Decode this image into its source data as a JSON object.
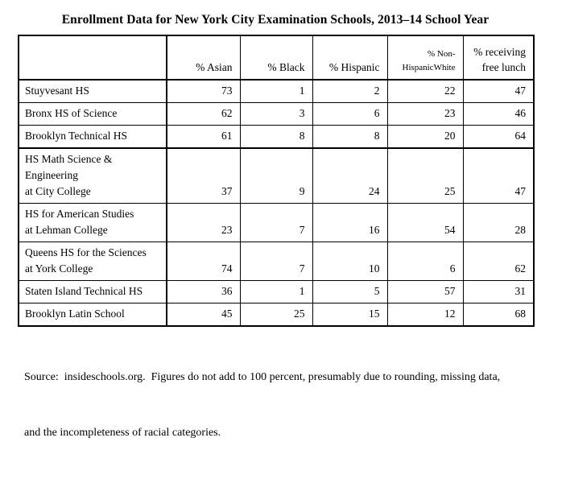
{
  "title": "Enrollment Data for New York City Examination Schools, 2013–14 School Year",
  "table": {
    "headers": [
      "",
      "% Asian",
      "% Black",
      "% Hispanic",
      "% Non-\nHispanicWhite",
      "% receiving\nfree lunch"
    ],
    "rows": [
      {
        "name": "Stuyvesant HS",
        "values": [
          "73",
          "1",
          "2",
          "22",
          "47"
        ]
      },
      {
        "name": "Bronx HS of Science",
        "values": [
          "62",
          "3",
          "6",
          "23",
          "46"
        ]
      },
      {
        "name": "Brooklyn Technical HS",
        "values": [
          "61",
          "8",
          "8",
          "20",
          "64"
        ]
      },
      {
        "name": "HS Math Science &\nEngineering\nat City College",
        "values": [
          "37",
          "9",
          "24",
          "25",
          "47"
        ]
      },
      {
        "name": "HS for American Studies\nat Lehman College",
        "values": [
          "23",
          "7",
          "16",
          "54",
          "28"
        ]
      },
      {
        "name": "Queens HS for the Sciences\nat York College",
        "values": [
          "74",
          "7",
          "10",
          "6",
          "62"
        ]
      },
      {
        "name": "Staten Island Technical HS",
        "values": [
          "36",
          "1",
          "5",
          "57",
          "31"
        ]
      },
      {
        "name": "Brooklyn Latin School",
        "values": [
          "45",
          "25",
          "15",
          "12",
          "68"
        ]
      }
    ]
  },
  "footnote": {
    "line1": "Source:  insideschools.org.  Figures do not add to 100 percent, presumably due to rounding, missing data,",
    "line2": "and the incompleteness of racial categories."
  },
  "colors": {
    "text": "#000000",
    "background": "#ffffff",
    "border": "#000000"
  }
}
